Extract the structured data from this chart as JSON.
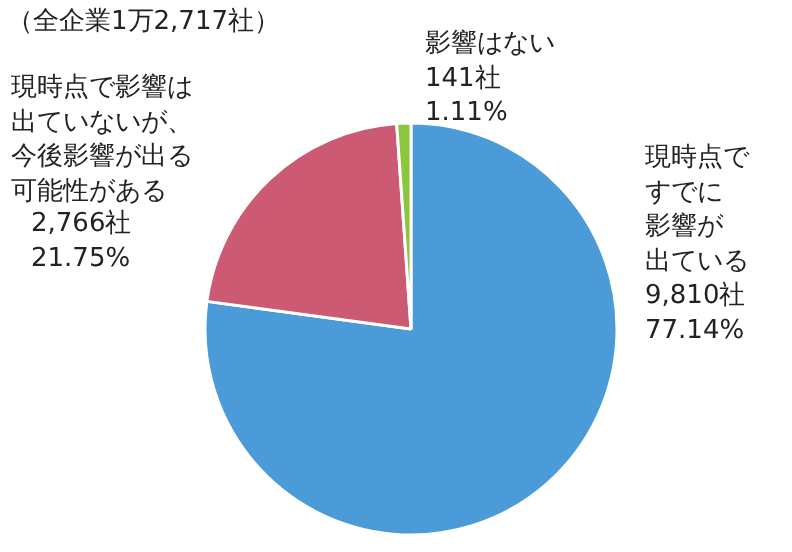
{
  "chart_data": {
    "type": "pie",
    "title": "（全企業1万2,717社）",
    "categories": [
      "現時点ですでに影響が出ている",
      "現時点で影響は出ていないが、今後影響が出る可能性がある",
      "影響はない"
    ],
    "values": [
      9810,
      2766,
      141
    ],
    "value_labels": [
      "9,810社\n77.14%",
      "2,766社\n21.75%",
      "141社\n1.11%"
    ],
    "colors": [
      "#4a9bd8",
      "#cc5a72",
      "#8cc63f"
    ]
  }
}
